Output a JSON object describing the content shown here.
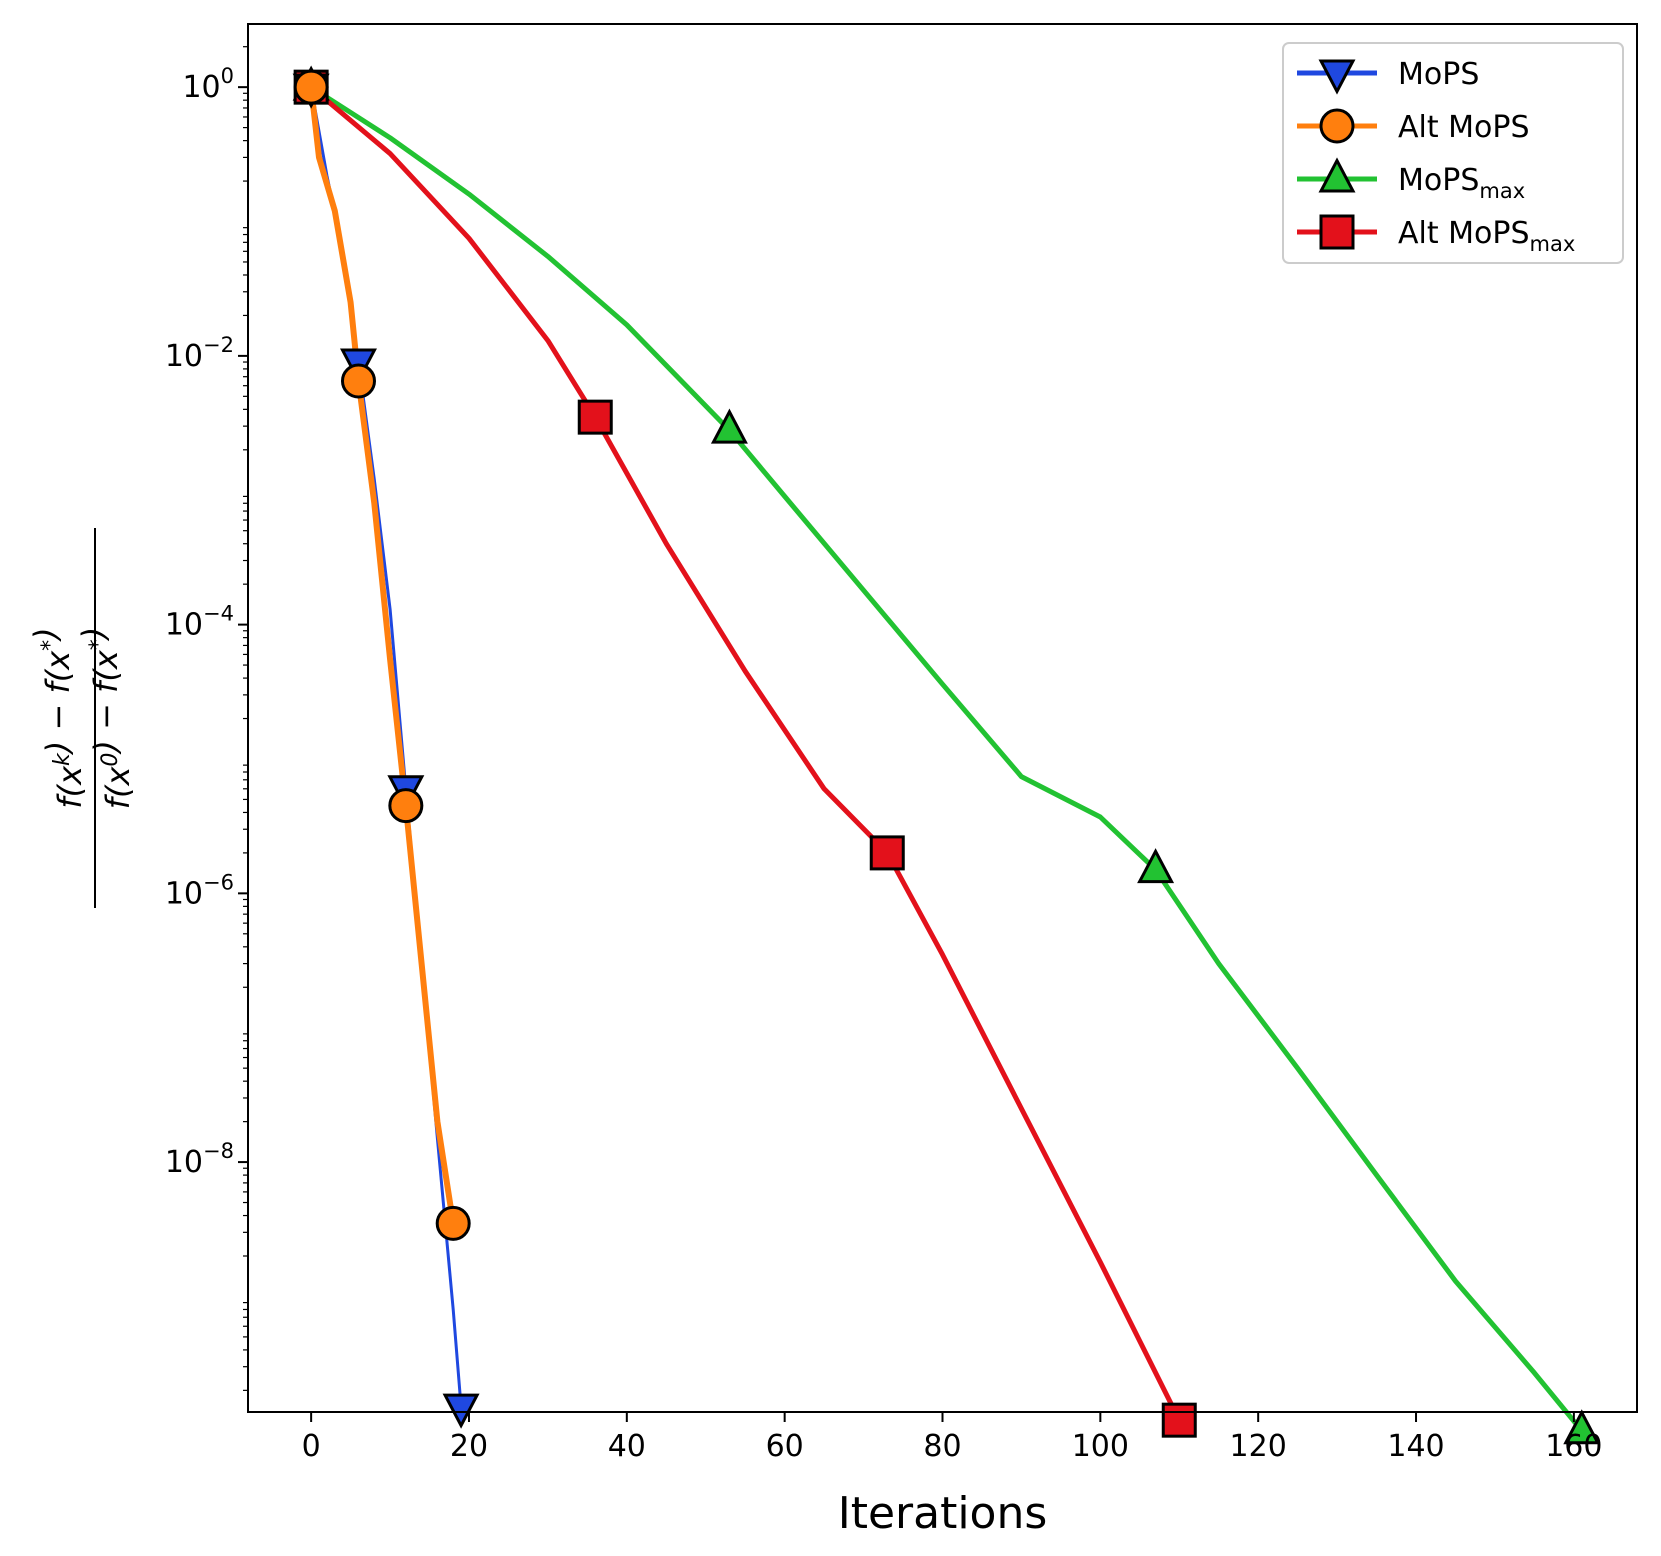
{
  "chart_data": {
    "type": "line",
    "xlabel": "Iterations",
    "ylabel": {
      "numerator": "f(x^k) − f(x^*)",
      "denominator": "f(x^0) − f(x^*)"
    },
    "yscale": "log",
    "xlim": [
      -8,
      168
    ],
    "ylim_exp": [
      -9.86,
      0.47
    ],
    "x_ticks": [
      0,
      20,
      40,
      60,
      80,
      100,
      120,
      140,
      160
    ],
    "y_tick_exponents": [
      0,
      -2,
      -4,
      -6,
      -8
    ],
    "y_tick_base": "10",
    "grid": false,
    "legend_position": "top-right",
    "series": [
      {
        "name": "MoPS",
        "name_sub": "",
        "color": "#1f48e0",
        "marker": "triangle-down",
        "line_width": 3,
        "points": [
          [
            0,
            1.0
          ],
          [
            2,
            0.22
          ],
          [
            4,
            0.06
          ],
          [
            6,
            0.009
          ],
          [
            8,
            0.0012
          ],
          [
            10,
            0.00013
          ],
          [
            12,
            6e-06
          ],
          [
            14,
            3e-07
          ],
          [
            16,
            1.5e-08
          ],
          [
            18,
            8e-10
          ],
          [
            19,
            1.5e-10
          ]
        ],
        "markers": [
          [
            0,
            1.0
          ],
          [
            6,
            0.009
          ],
          [
            12,
            6e-06
          ],
          [
            19,
            1.5e-10
          ]
        ]
      },
      {
        "name": "Alt MoPS",
        "name_sub": "",
        "color": "#ff7f0e",
        "marker": "circle",
        "line_width": 6,
        "points": [
          [
            0,
            1.0
          ],
          [
            1,
            0.3
          ],
          [
            3,
            0.12
          ],
          [
            5,
            0.025
          ],
          [
            6,
            0.0065
          ],
          [
            8,
            0.0008
          ],
          [
            10,
            5.5e-05
          ],
          [
            12,
            4.5e-06
          ],
          [
            14,
            3e-07
          ],
          [
            16,
            2e-08
          ],
          [
            18,
            3.5e-09
          ]
        ],
        "markers": [
          [
            0,
            1.0
          ],
          [
            6,
            0.0065
          ],
          [
            12,
            4.5e-06
          ],
          [
            18,
            3.5e-09
          ]
        ]
      },
      {
        "name": "MoPS",
        "name_sub": "max",
        "color": "#22c232",
        "marker": "triangle-up",
        "line_width": 5,
        "points": [
          [
            0,
            1.0
          ],
          [
            10,
            0.42
          ],
          [
            20,
            0.16
          ],
          [
            30,
            0.055
          ],
          [
            40,
            0.017
          ],
          [
            53,
            0.0028
          ],
          [
            60,
            0.0009
          ],
          [
            70,
            0.00018
          ],
          [
            80,
            3.6e-05
          ],
          [
            90,
            7.4e-06
          ],
          [
            100,
            3.7e-06
          ],
          [
            107,
            1.5e-06
          ],
          [
            115,
            3e-07
          ],
          [
            125,
            5e-08
          ],
          [
            135,
            8e-09
          ],
          [
            145,
            1.3e-09
          ],
          [
            155,
            2.7e-10
          ],
          [
            161,
            1e-10
          ]
        ],
        "markers": [
          [
            0,
            1.0
          ],
          [
            53,
            0.0028
          ],
          [
            107,
            1.5e-06
          ],
          [
            161,
            1e-10
          ]
        ]
      },
      {
        "name": "Alt MoPS",
        "name_sub": "max",
        "color": "#e3111b",
        "marker": "square",
        "line_width": 5,
        "points": [
          [
            0,
            1.0
          ],
          [
            10,
            0.32
          ],
          [
            20,
            0.075
          ],
          [
            30,
            0.013
          ],
          [
            36,
            0.0035
          ],
          [
            45,
            0.0004
          ],
          [
            55,
            4.5e-05
          ],
          [
            65,
            6e-06
          ],
          [
            73,
            2e-06
          ],
          [
            80,
            3.5e-07
          ],
          [
            90,
            2.5e-08
          ],
          [
            100,
            1.8e-09
          ],
          [
            110,
            1.2e-10
          ]
        ],
        "markers": [
          [
            0,
            1.0
          ],
          [
            36,
            0.0035
          ],
          [
            73,
            2e-06
          ],
          [
            110,
            1.2e-10
          ]
        ]
      }
    ]
  }
}
